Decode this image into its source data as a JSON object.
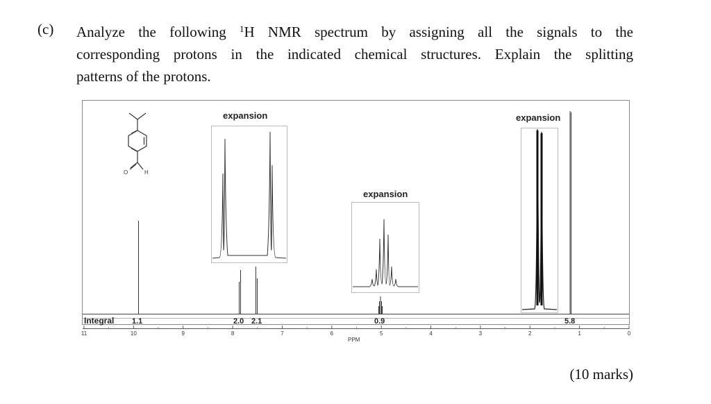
{
  "question": {
    "label": "(c)",
    "line1_pre": "Analyze the following ",
    "line1_sup": "1",
    "line1_post": "H NMR spectrum by assigning all the signals to the",
    "line2": "corresponding protons in the indicated chemical structures. Explain the splitting",
    "line3": "patterns of the protons."
  },
  "marks": "(10 marks)",
  "spectrum": {
    "integral_label": "Integral",
    "axis_unit": "PPM",
    "expansion_label": "expansion",
    "structure_h_label": "H",
    "structure_o_label": "O",
    "axis_ticks": [
      "11",
      "10",
      "9",
      "8",
      "7",
      "6",
      "5",
      "4",
      "3",
      "2",
      "1",
      "0"
    ],
    "integrals": [
      "1.1",
      "2.0",
      "2.1",
      "0.9",
      "5.8"
    ]
  }
}
